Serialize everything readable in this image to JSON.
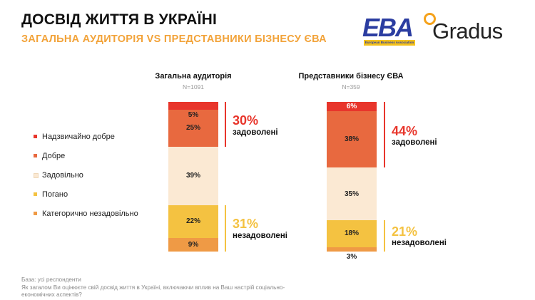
{
  "title": "ДОСВІД ЖИТТЯ В УКРАЇНІ",
  "subtitle": "ЗАГАЛЬНА АУДИТОРІЯ VS ПРЕДСТАВНИКИ БІЗНЕСУ ЄВА",
  "logos": {
    "eba": "EBA",
    "eba_sub": "European Business Association",
    "gradus": "Gradus"
  },
  "colors": {
    "very_good": "#e8352b",
    "good": "#e8693f",
    "satisfactory": "#fbe9d3",
    "bad": "#f4c241",
    "very_bad": "#ef9a45",
    "satisfied_accent": "#e8352b",
    "dissatisfied_accent": "#f4c241"
  },
  "chart_data": {
    "type": "bar",
    "stacked": true,
    "unit": "%",
    "categories": [
      "Загальна аудиторія",
      "Представники бізнесу ЄВА"
    ],
    "sample_sizes": [
      "N=1091",
      "N=359"
    ],
    "series": [
      {
        "name": "Надзвичайно добре",
        "values": [
          5,
          6
        ]
      },
      {
        "name": "Добре",
        "values": [
          25,
          38
        ]
      },
      {
        "name": "Задовільно",
        "values": [
          39,
          35
        ]
      },
      {
        "name": "Погано",
        "values": [
          22,
          18
        ]
      },
      {
        "name": "Категорично незадовільно",
        "values": [
          9,
          3
        ]
      }
    ],
    "legend": [
      "Надзвичайно добре",
      "Добре",
      "Задовільно",
      "Погано",
      "Категорично незадовільно"
    ],
    "legend_position": "left",
    "summaries": [
      {
        "satisfied": "30%",
        "satisfied_label": "задоволені",
        "dissatisfied": "31%",
        "dissatisfied_label": "незадоволені"
      },
      {
        "satisfied": "44%",
        "satisfied_label": "задоволені",
        "dissatisfied": "21%",
        "dissatisfied_label": "незадоволені"
      }
    ]
  },
  "footer": {
    "base": "База: усі респонденти",
    "question": "Як загалом Ви оцінюєте свій досвід життя в Україні, включаючи вплив на Ваш настрій соціально-економічних аспектів?"
  }
}
